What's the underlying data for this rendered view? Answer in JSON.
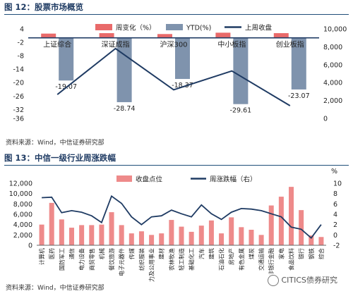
{
  "figure1": {
    "title": "图 12：股票市场概览",
    "source": "资料来源：Wind，中信证券研究部",
    "chart_data": {
      "type": "bar",
      "categories": [
        "上证综合",
        "深证成指",
        "沪深300",
        "中小板指",
        "创业板指"
      ],
      "series": [
        {
          "name": "周变化（%）",
          "type": "bar",
          "axis": "left",
          "color": "#e96a6a",
          "values": [
            1.9,
            2.1,
            1.7,
            2.3,
            2.1
          ]
        },
        {
          "name": "YTD(%)",
          "type": "bar",
          "axis": "left",
          "color": "#7f93ad",
          "values": [
            -19.07,
            -28.74,
            -18.37,
            -29.61,
            -23.07
          ],
          "labels": [
            "-19.07",
            "-28.74",
            "-18.37",
            "-29.61",
            "-23.07"
          ]
        },
        {
          "name": "上周收盘",
          "type": "line",
          "axis": "right",
          "color": "#1f3b63",
          "values": [
            2670,
            7800,
            3200,
            5300,
            1420
          ]
        }
      ],
      "yleft": {
        "ticks": [
          "4",
          "-2",
          "-8",
          "-14",
          "-20",
          "-26",
          "-32",
          "-36"
        ],
        "min": -36,
        "max": 4
      },
      "yright": {
        "ticks": [
          "10,000",
          "8,000",
          "6,000",
          "4,000",
          "2,000",
          "0"
        ],
        "min": 0,
        "max": 10000
      }
    }
  },
  "figure2": {
    "title": "图 13：中信一级行业周涨跌幅",
    "source": "资料来源：Wind，中信证券研究部",
    "chart_data": {
      "type": "bar",
      "categories": [
        "计算机",
        "医药",
        "国防军工",
        "通信",
        "电力设备",
        "商贸零售",
        "机械",
        "餐饮旅游",
        "电子元器件",
        "传媒",
        "纺织服装",
        "电力及公用事业",
        "建材",
        "农林牧渔",
        "轻工制造",
        "基础化工",
        "汽车",
        "建筑",
        "石油石化",
        "房地产",
        "有色金属",
        "煤炭",
        "交通运输",
        "非银行金融",
        "家电",
        "食品饮料",
        "银行",
        "钢铁",
        "综合"
      ],
      "series": [
        {
          "name": "收盘点位",
          "type": "bar",
          "axis": "left",
          "color": "#ee8a8a",
          "values": [
            4000,
            8200,
            5000,
            3400,
            3900,
            3900,
            4000,
            6400,
            3900,
            2300,
            2700,
            2000,
            2300,
            4900,
            3600,
            2600,
            3800,
            4800,
            2300,
            5400,
            3500,
            3000,
            2000,
            7700,
            9400,
            11300,
            6800,
            1900,
            1600
          ]
        },
        {
          "name": "周涨跌幅（右）",
          "type": "line",
          "axis": "right",
          "color": "#1f3b63",
          "values": [
            7.2,
            7.3,
            4.3,
            4.7,
            4.4,
            3.7,
            2.4,
            7.5,
            6.1,
            3.5,
            2.0,
            3.5,
            3.7,
            4.8,
            4.1,
            3.5,
            5.8,
            4.1,
            3.0,
            4.4,
            5.1,
            5.0,
            4.7,
            4.1,
            3.5,
            1.5,
            1.1,
            -0.6,
            2.0
          ]
        }
      ],
      "yleft": {
        "ticks": [
          "12,000",
          "10,000",
          "8,000",
          "6,000",
          "4,000",
          "2,000",
          "0"
        ],
        "min": 0,
        "max": 12000
      },
      "yright": {
        "label": "%",
        "ticks": [
          "10",
          "8",
          "6",
          "4",
          "2",
          "0",
          "-2"
        ],
        "min": -2,
        "max": 10
      }
    }
  },
  "watermark": "CITICS债券研究"
}
